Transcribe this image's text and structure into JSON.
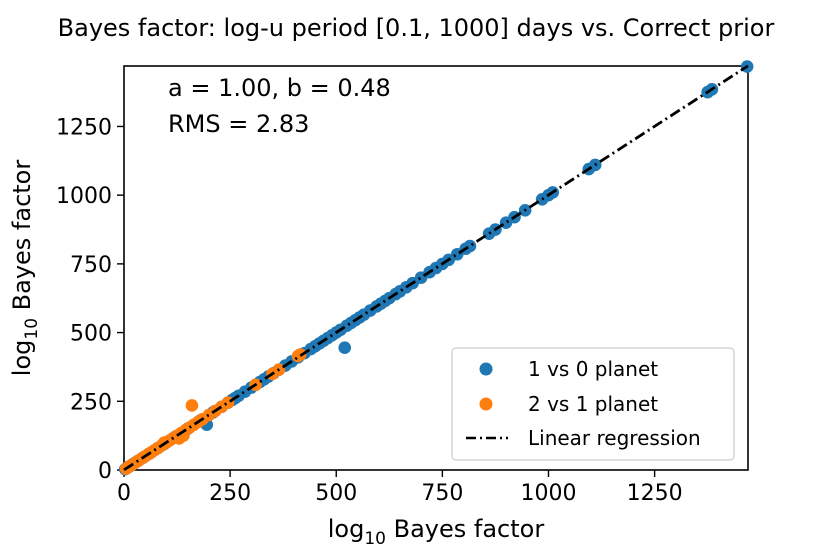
{
  "chart_data": {
    "type": "scatter",
    "title": "Bayes factor: log-u period [0.1, 1000] days vs. Correct prior",
    "xlabel_main": "log",
    "xlabel_sub": "10",
    "xlabel_rest": " Bayes factor",
    "ylabel_main": "log",
    "ylabel_sub": "10",
    "ylabel_rest": " Bayes factor",
    "xlim": [
      0,
      1470
    ],
    "ylim": [
      0,
      1470
    ],
    "xticks": [
      0,
      250,
      500,
      750,
      1000,
      1250
    ],
    "yticks": [
      0,
      250,
      500,
      750,
      1000,
      1250
    ],
    "grid": false,
    "legend_position": "lower-right",
    "annotations": [
      "a = 1.00, b = 0.48",
      "RMS = 2.83"
    ],
    "regression": {
      "name": "Linear regression",
      "slope": 1.0,
      "intercept": 0.48
    },
    "series": [
      {
        "name": "1 vs 0 planet",
        "color": "#1f77b4",
        "points": [
          [
            3,
            3
          ],
          [
            8,
            9
          ],
          [
            12,
            12
          ],
          [
            18,
            18
          ],
          [
            25,
            25
          ],
          [
            32,
            32
          ],
          [
            45,
            45
          ],
          [
            60,
            60
          ],
          [
            80,
            80
          ],
          [
            95,
            95
          ],
          [
            120,
            120
          ],
          [
            150,
            150
          ],
          [
            180,
            180
          ],
          [
            195,
            165
          ],
          [
            210,
            210
          ],
          [
            230,
            230
          ],
          [
            245,
            245
          ],
          [
            255,
            255
          ],
          [
            262,
            262
          ],
          [
            270,
            270
          ],
          [
            285,
            285
          ],
          [
            300,
            300
          ],
          [
            310,
            310
          ],
          [
            320,
            320
          ],
          [
            330,
            330
          ],
          [
            340,
            340
          ],
          [
            352,
            352
          ],
          [
            365,
            365
          ],
          [
            380,
            380
          ],
          [
            395,
            395
          ],
          [
            410,
            410
          ],
          [
            425,
            425
          ],
          [
            440,
            440
          ],
          [
            450,
            450
          ],
          [
            460,
            460
          ],
          [
            470,
            470
          ],
          [
            480,
            480
          ],
          [
            490,
            490
          ],
          [
            500,
            500
          ],
          [
            510,
            510
          ],
          [
            520,
            445
          ],
          [
            525,
            525
          ],
          [
            535,
            535
          ],
          [
            545,
            545
          ],
          [
            555,
            555
          ],
          [
            565,
            565
          ],
          [
            580,
            580
          ],
          [
            595,
            595
          ],
          [
            605,
            605
          ],
          [
            615,
            615
          ],
          [
            625,
            625
          ],
          [
            640,
            640
          ],
          [
            650,
            650
          ],
          [
            665,
            665
          ],
          [
            680,
            680
          ],
          [
            700,
            700
          ],
          [
            720,
            720
          ],
          [
            735,
            735
          ],
          [
            750,
            750
          ],
          [
            765,
            765
          ],
          [
            785,
            785
          ],
          [
            805,
            805
          ],
          [
            815,
            815
          ],
          [
            860,
            860
          ],
          [
            875,
            875
          ],
          [
            900,
            900
          ],
          [
            920,
            920
          ],
          [
            945,
            945
          ],
          [
            985,
            985
          ],
          [
            1000,
            1000
          ],
          [
            1010,
            1010
          ],
          [
            1095,
            1095
          ],
          [
            1110,
            1110
          ],
          [
            1375,
            1375
          ],
          [
            1385,
            1385
          ],
          [
            1468,
            1468
          ]
        ]
      },
      {
        "name": "2 vs 1 planet",
        "color": "#ff7f0e",
        "points": [
          [
            5,
            5
          ],
          [
            12,
            12
          ],
          [
            20,
            20
          ],
          [
            28,
            28
          ],
          [
            35,
            35
          ],
          [
            42,
            42
          ],
          [
            50,
            50
          ],
          [
            58,
            58
          ],
          [
            65,
            65
          ],
          [
            72,
            72
          ],
          [
            80,
            80
          ],
          [
            88,
            88
          ],
          [
            100,
            100
          ],
          [
            108,
            108
          ],
          [
            115,
            115
          ],
          [
            125,
            125
          ],
          [
            135,
            135
          ],
          [
            145,
            145
          ],
          [
            155,
            155
          ],
          [
            160,
            235
          ],
          [
            165,
            165
          ],
          [
            175,
            175
          ],
          [
            185,
            185
          ],
          [
            200,
            200
          ],
          [
            215,
            215
          ],
          [
            230,
            230
          ],
          [
            245,
            245
          ],
          [
            310,
            310
          ],
          [
            350,
            350
          ],
          [
            365,
            365
          ],
          [
            410,
            415
          ],
          [
            415,
            420
          ],
          [
            95,
            100
          ],
          [
            130,
            115
          ],
          [
            140,
            125
          ]
        ]
      }
    ]
  }
}
